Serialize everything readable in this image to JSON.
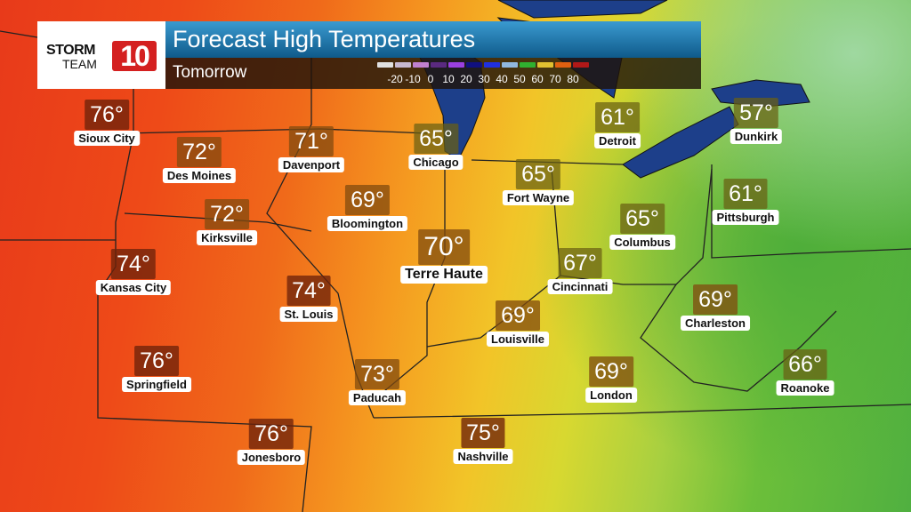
{
  "header": {
    "logo_text": "STORM TEAM 10",
    "title": "Forecast High Temperatures",
    "subtitle": "Tomorrow"
  },
  "legend": {
    "colors": [
      "#e0e0e0",
      "#c8b8d0",
      "#c080d0",
      "#5a2a80",
      "#9a40e0",
      "#101080",
      "#2030e0",
      "#90b8e0",
      "#30b030",
      "#e0c030",
      "#e06010",
      "#b01818"
    ],
    "labels": [
      "-20",
      "-10",
      "0",
      "10",
      "20",
      "30",
      "40",
      "50",
      "60",
      "70",
      "80"
    ]
  },
  "cities": [
    {
      "name": "Sioux City",
      "temp": "76°"
    },
    {
      "name": "Des Moines",
      "temp": "72°"
    },
    {
      "name": "Davenport",
      "temp": "71°"
    },
    {
      "name": "Chicago",
      "temp": "65°"
    },
    {
      "name": "Detroit",
      "temp": "61°"
    },
    {
      "name": "Dunkirk",
      "temp": "57°"
    },
    {
      "name": "Bloomington",
      "temp": "69°"
    },
    {
      "name": "Fort Wayne",
      "temp": "65°"
    },
    {
      "name": "Pittsburgh",
      "temp": "61°"
    },
    {
      "name": "Kirksville",
      "temp": "72°"
    },
    {
      "name": "Columbus",
      "temp": "65°"
    },
    {
      "name": "Terre Haute",
      "temp": "70°"
    },
    {
      "name": "Kansas City",
      "temp": "74°"
    },
    {
      "name": "St. Louis",
      "temp": "74°"
    },
    {
      "name": "Cincinnati",
      "temp": "67°"
    },
    {
      "name": "Charleston",
      "temp": "69°"
    },
    {
      "name": "Louisville",
      "temp": "69°"
    },
    {
      "name": "Springfield",
      "temp": "76°"
    },
    {
      "name": "Paducah",
      "temp": "73°"
    },
    {
      "name": "London",
      "temp": "69°"
    },
    {
      "name": "Roanoke",
      "temp": "66°"
    },
    {
      "name": "Nashville",
      "temp": "75°"
    },
    {
      "name": "Jonesboro",
      "temp": "76°"
    }
  ]
}
